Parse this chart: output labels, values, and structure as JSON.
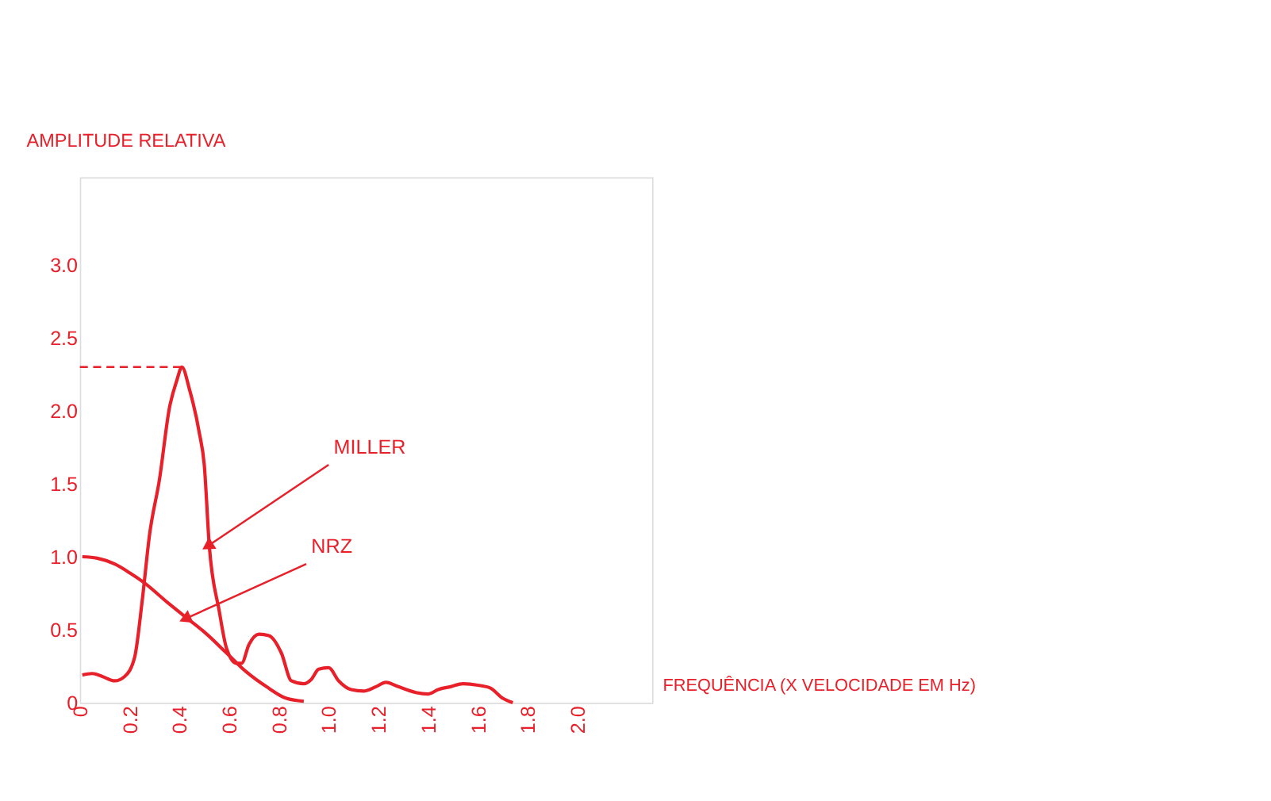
{
  "chart_data": {
    "type": "line",
    "xlabel": "FREQUÊNCIA (X VELOCIDADE EM Hz)",
    "ylabel": "AMPLITUDE RELATIVA",
    "series": [
      {
        "name": "MILLER",
        "color": "#e8202a",
        "x": [
          0.01,
          0.05,
          0.09,
          0.14,
          0.18,
          0.22,
          0.25,
          0.28,
          0.32,
          0.36,
          0.39,
          0.41,
          0.44,
          0.48,
          0.5,
          0.52,
          0.56,
          0.59,
          0.63,
          0.65,
          0.68,
          0.72,
          0.76,
          0.81,
          0.85,
          0.9,
          0.93,
          0.96,
          1.0,
          1.04,
          1.09,
          1.14,
          1.19,
          1.23,
          1.28,
          1.35,
          1.4,
          1.44,
          1.49,
          1.54,
          1.6,
          1.65,
          1.7,
          1.74
        ],
        "values": [
          0.19,
          0.2,
          0.18,
          0.15,
          0.18,
          0.31,
          0.69,
          1.15,
          1.53,
          2.02,
          2.21,
          2.3,
          2.15,
          1.85,
          1.63,
          1.08,
          0.63,
          0.37,
          0.27,
          0.27,
          0.4,
          0.47,
          0.46,
          0.34,
          0.15,
          0.13,
          0.16,
          0.23,
          0.24,
          0.15,
          0.09,
          0.08,
          0.11,
          0.14,
          0.11,
          0.07,
          0.06,
          0.09,
          0.11,
          0.13,
          0.12,
          0.1,
          0.03,
          0.0
        ]
      },
      {
        "name": "NRZ",
        "color": "#e8202a",
        "x": [
          0.01,
          0.07,
          0.14,
          0.2,
          0.26,
          0.35,
          0.43,
          0.51,
          0.59,
          0.67,
          0.75,
          0.83,
          0.9
        ],
        "values": [
          1.0,
          0.99,
          0.95,
          0.89,
          0.82,
          0.69,
          0.58,
          0.47,
          0.34,
          0.21,
          0.11,
          0.03,
          0.01
        ]
      }
    ],
    "xlim": [
      0,
      2.3
    ],
    "ylim": [
      0,
      3.6
    ],
    "xticks": [
      {
        "value": 0,
        "label": "0"
      },
      0.2,
      0.4,
      0.6,
      0.8,
      {
        "value": 1.0,
        "label": "1.0"
      },
      1.2,
      1.4,
      1.6,
      1.8,
      {
        "value": 2.0,
        "label": "2.0"
      }
    ],
    "yticks": [
      0,
      0.5,
      {
        "value": 1.0,
        "label": "1.0"
      },
      1.5,
      {
        "value": 2.0,
        "label": "2.0"
      },
      2.5,
      {
        "value": 3.0,
        "label": "3.0"
      }
    ],
    "ref_lines": [
      {
        "axis": "y",
        "value": 2.3,
        "line_style": "dashed"
      }
    ],
    "grid": false,
    "marker": "none",
    "line_style": "solid"
  }
}
